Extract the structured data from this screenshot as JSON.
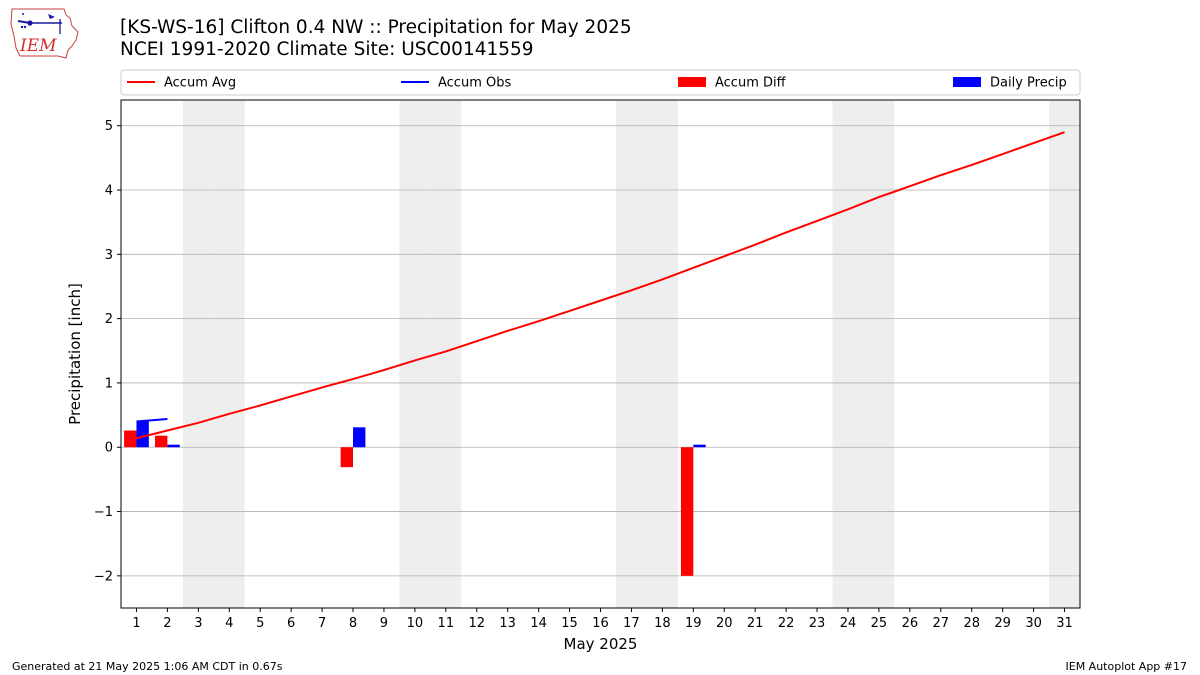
{
  "header": {
    "logo_text": "IEM",
    "title": "[KS-WS-16] Clifton 0.4 NW :: Precipitation for May 2025",
    "subtitle": "NCEI 1991-2020 Climate Site: USC00141559"
  },
  "footer": {
    "generated": "Generated at 21 May 2025 1:06 AM CDT in 0.67s",
    "app": "IEM Autoplot App #17"
  },
  "colors": {
    "accum_avg": "#ff0000",
    "accum_obs": "#0000ff",
    "accum_diff": "#ff0000",
    "daily_precip": "#0000ff",
    "weekend_shade": "#eeeeee",
    "grid": "#b0b0b0"
  },
  "chart_data": {
    "type": "bar",
    "xlabel": "May 2025",
    "ylabel": "Precipitation [inch]",
    "xlim": [
      0.5,
      31.5
    ],
    "ylim": [
      -2.5,
      5.4
    ],
    "yticks": [
      -2,
      -1,
      0,
      1,
      2,
      3,
      4,
      5
    ],
    "ytick_labels": [
      "−2",
      "−1",
      "0",
      "1",
      "2",
      "3",
      "4",
      "5"
    ],
    "days": [
      1,
      2,
      3,
      4,
      5,
      6,
      7,
      8,
      9,
      10,
      11,
      12,
      13,
      14,
      15,
      16,
      17,
      18,
      19,
      20,
      21,
      22,
      23,
      24,
      25,
      26,
      27,
      28,
      29,
      30,
      31
    ],
    "grid": "horizontal",
    "legend_placement": "top",
    "weekend_days": [
      3,
      4,
      10,
      11,
      17,
      18,
      24,
      25,
      31
    ],
    "legend": [
      "Accum Avg",
      "Accum Obs",
      "Accum Diff",
      "Daily Precip"
    ],
    "series": [
      {
        "name": "Accum Avg",
        "type": "line",
        "x": [
          1,
          2,
          3,
          4,
          5,
          6,
          7,
          8,
          9,
          10,
          11,
          12,
          13,
          14,
          15,
          16,
          17,
          18,
          19,
          20,
          21,
          22,
          23,
          24,
          25,
          26,
          27,
          28,
          29,
          30,
          31
        ],
        "values": [
          0.14,
          0.26,
          0.38,
          0.52,
          0.65,
          0.79,
          0.93,
          1.06,
          1.2,
          1.35,
          1.49,
          1.65,
          1.81,
          1.96,
          2.12,
          2.28,
          2.44,
          2.61,
          2.79,
          2.97,
          3.15,
          3.34,
          3.52,
          3.7,
          3.89,
          4.06,
          4.23,
          4.39,
          4.56,
          4.73,
          4.9
        ]
      },
      {
        "name": "Accum Obs",
        "type": "line",
        "x": [
          1,
          2
        ],
        "values": [
          0.4,
          0.44
        ]
      },
      {
        "name": "Accum Diff",
        "type": "bar",
        "x": [
          1,
          2,
          8,
          19
        ],
        "values": [
          0.26,
          0.18,
          -0.31,
          -2.0
        ]
      },
      {
        "name": "Daily Precip",
        "type": "bar",
        "x": [
          1,
          2,
          8,
          19
        ],
        "values": [
          0.4,
          0.04,
          0.31,
          0.04
        ]
      }
    ]
  }
}
